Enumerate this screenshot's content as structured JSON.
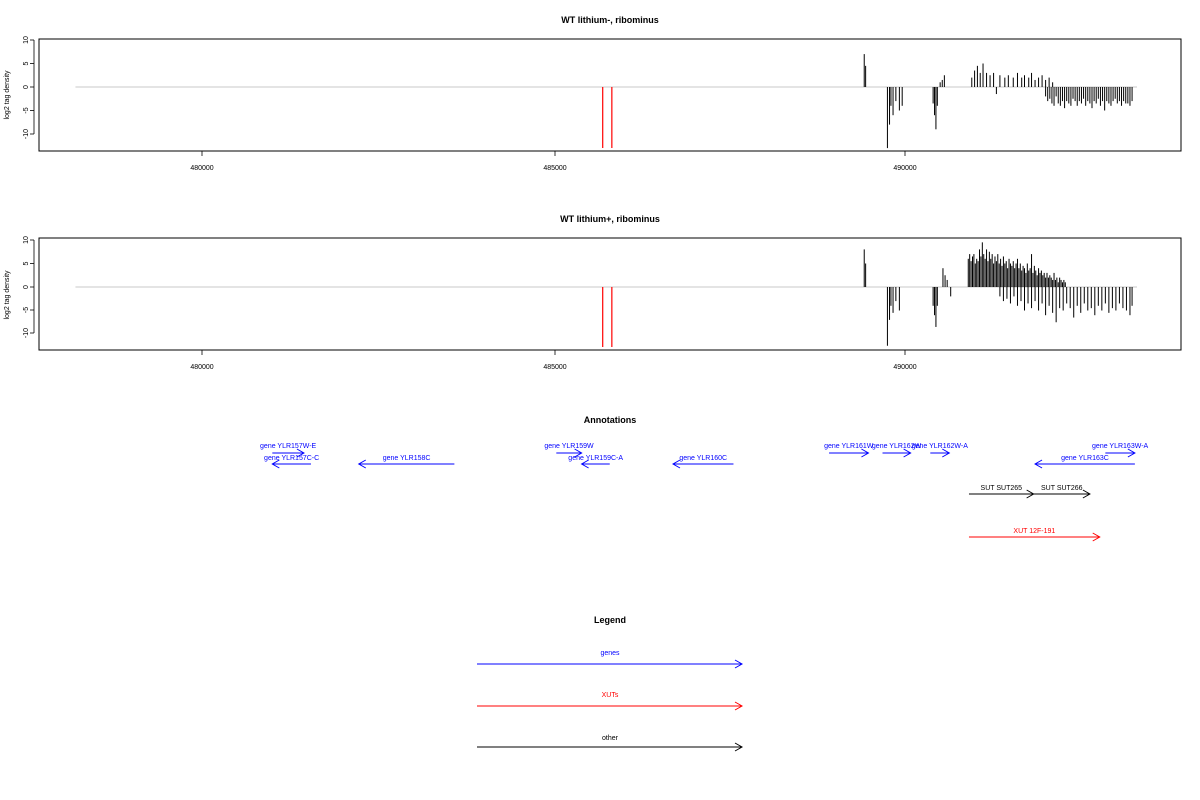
{
  "chart_data": [
    {
      "type": "bar",
      "title": "WT lithium-, ribominus",
      "xlabel": "",
      "ylabel": "log2 tag density",
      "xlim": [
        477700,
        493700
      ],
      "ylim": [
        -13.5,
        10.5
      ],
      "x_ticks": [
        "480000",
        "485000",
        "490000"
      ],
      "y_ticks": [
        "10",
        "5",
        "0",
        "-5",
        "-10"
      ],
      "baseline": {
        "from": 478200,
        "to": 493300,
        "color": "#c8c8c8"
      },
      "red_markers": [
        485700,
        485830
      ],
      "series": [
        {
          "values": [
            [
              489420,
              7
            ],
            [
              489440,
              4.5
            ],
            [
              489750,
              -13
            ],
            [
              489780,
              -8
            ],
            [
              489800,
              -4
            ],
            [
              489830,
              -6
            ],
            [
              489870,
              -3
            ],
            [
              489920,
              -5
            ],
            [
              489960,
              -4
            ],
            [
              490400,
              -3.5
            ],
            [
              490420,
              -6
            ],
            [
              490440,
              -9
            ],
            [
              490460,
              -4
            ],
            [
              490500,
              1
            ],
            [
              490530,
              1.5
            ],
            [
              490560,
              2.5
            ],
            [
              490950,
              2
            ],
            [
              490990,
              3.5
            ],
            [
              491030,
              4.5
            ],
            [
              491070,
              3
            ],
            [
              491110,
              5
            ],
            [
              491160,
              3
            ],
            [
              491210,
              2.5
            ],
            [
              491260,
              3
            ],
            [
              491300,
              -1.5
            ],
            [
              491350,
              2.5
            ],
            [
              491420,
              2
            ],
            [
              491470,
              2.5
            ],
            [
              491540,
              2
            ],
            [
              491600,
              3
            ],
            [
              491660,
              2
            ],
            [
              491700,
              2.5
            ],
            [
              491760,
              2
            ],
            [
              491800,
              3
            ],
            [
              491850,
              1.5
            ],
            [
              491900,
              2
            ],
            [
              491950,
              2.5
            ],
            [
              492000,
              1.5
            ],
            [
              492050,
              2
            ],
            [
              492100,
              1
            ],
            [
              492000,
              -2
            ],
            [
              492030,
              -3
            ],
            [
              492060,
              -2.5
            ],
            [
              492090,
              -3.5
            ],
            [
              492120,
              -4
            ],
            [
              492150,
              -2
            ],
            [
              492180,
              -3.5
            ],
            [
              492210,
              -4
            ],
            [
              492240,
              -3
            ],
            [
              492270,
              -4.5
            ],
            [
              492300,
              -3
            ],
            [
              492330,
              -3.5
            ],
            [
              492360,
              -4
            ],
            [
              492390,
              -2.5
            ],
            [
              492420,
              -3
            ],
            [
              492450,
              -4
            ],
            [
              492480,
              -3
            ],
            [
              492510,
              -3.5
            ],
            [
              492540,
              -2.5
            ],
            [
              492570,
              -4
            ],
            [
              492600,
              -3
            ],
            [
              492630,
              -3.5
            ],
            [
              492660,
              -4.5
            ],
            [
              492690,
              -3
            ],
            [
              492720,
              -3.5
            ],
            [
              492750,
              -2.5
            ],
            [
              492780,
              -4
            ],
            [
              492810,
              -3
            ],
            [
              492840,
              -5
            ],
            [
              492870,
              -3
            ],
            [
              492900,
              -3.5
            ],
            [
              492930,
              -4
            ],
            [
              492960,
              -3
            ],
            [
              492990,
              -2.5
            ],
            [
              493020,
              -3.5
            ],
            [
              493050,
              -3
            ],
            [
              493080,
              -4
            ],
            [
              493110,
              -3
            ],
            [
              493140,
              -3.5
            ],
            [
              493170,
              -3.5
            ],
            [
              493200,
              -4
            ],
            [
              493230,
              -3
            ]
          ]
        }
      ]
    },
    {
      "type": "bar",
      "title": "WT lithium+, ribominus",
      "xlabel": "",
      "ylabel": "log2 tag density",
      "xlim": [
        477700,
        493700
      ],
      "ylim": [
        -13.5,
        10.5
      ],
      "x_ticks": [
        "480000",
        "485000",
        "490000"
      ],
      "y_ticks": [
        "10",
        "5",
        "0",
        "-5",
        "-10"
      ],
      "baseline": {
        "from": 478200,
        "to": 493300,
        "color": "#c8c8c8"
      },
      "red_markers": [
        485700,
        485830
      ],
      "series": [
        {
          "values": [
            [
              489420,
              8
            ],
            [
              489440,
              5
            ],
            [
              489750,
              -12.5
            ],
            [
              489780,
              -7
            ],
            [
              489800,
              -4
            ],
            [
              489830,
              -5.5
            ],
            [
              489870,
              -3
            ],
            [
              489920,
              -5
            ],
            [
              490400,
              -4
            ],
            [
              490420,
              -6
            ],
            [
              490440,
              -8.5
            ],
            [
              490460,
              -4
            ],
            [
              490540,
              4
            ],
            [
              490570,
              2.5
            ],
            [
              490600,
              1.5
            ],
            [
              490650,
              -2
            ],
            [
              490900,
              6
            ],
            [
              490920,
              7
            ],
            [
              490940,
              5.5
            ],
            [
              490960,
              6.5
            ],
            [
              490980,
              7
            ],
            [
              491000,
              5
            ],
            [
              491020,
              6
            ],
            [
              491040,
              5.5
            ],
            [
              491060,
              8
            ],
            [
              491080,
              6.5
            ],
            [
              491100,
              9.5
            ],
            [
              491120,
              7
            ],
            [
              491140,
              6
            ],
            [
              491160,
              8
            ],
            [
              491180,
              5.5
            ],
            [
              491200,
              7.5
            ],
            [
              491220,
              6
            ],
            [
              491240,
              7
            ],
            [
              491260,
              5
            ],
            [
              491280,
              6.5
            ],
            [
              491300,
              5.5
            ],
            [
              491320,
              7
            ],
            [
              491340,
              5
            ],
            [
              491360,
              6
            ],
            [
              491380,
              4.5
            ],
            [
              491400,
              6.5
            ],
            [
              491420,
              5
            ],
            [
              491440,
              5.5
            ],
            [
              491460,
              4
            ],
            [
              491480,
              6
            ],
            [
              491500,
              5
            ],
            [
              491520,
              4.5
            ],
            [
              491540,
              5.5
            ],
            [
              491560,
              4
            ],
            [
              491580,
              5
            ],
            [
              491600,
              6
            ],
            [
              491620,
              4
            ],
            [
              491640,
              5
            ],
            [
              491660,
              3.5
            ],
            [
              491680,
              4.5
            ],
            [
              491700,
              4
            ],
            [
              491720,
              3
            ],
            [
              491740,
              5
            ],
            [
              491760,
              3.5
            ],
            [
              491780,
              4
            ],
            [
              491800,
              7
            ],
            [
              491820,
              3
            ],
            [
              491840,
              4.5
            ],
            [
              491860,
              3.5
            ],
            [
              491880,
              2.5
            ],
            [
              491900,
              4
            ],
            [
              491920,
              3
            ],
            [
              491940,
              3.5
            ],
            [
              491960,
              2.5
            ],
            [
              491980,
              3
            ],
            [
              492000,
              2
            ],
            [
              492020,
              3
            ],
            [
              492040,
              2
            ],
            [
              492060,
              2.5
            ],
            [
              492080,
              2
            ],
            [
              492100,
              1.5
            ],
            [
              492120,
              3
            ],
            [
              492140,
              1.5
            ],
            [
              492160,
              2
            ],
            [
              492180,
              1
            ],
            [
              492200,
              2
            ],
            [
              492220,
              1.5
            ],
            [
              492240,
              1
            ],
            [
              492260,
              1.5
            ],
            [
              492280,
              1
            ],
            [
              491350,
              -2
            ],
            [
              491400,
              -3
            ],
            [
              491450,
              -2.5
            ],
            [
              491500,
              -3.5
            ],
            [
              491550,
              -2
            ],
            [
              491600,
              -4
            ],
            [
              491650,
              -3
            ],
            [
              491700,
              -5
            ],
            [
              491750,
              -3.5
            ],
            [
              491800,
              -4.5
            ],
            [
              491850,
              -3
            ],
            [
              491900,
              -5
            ],
            [
              491950,
              -3.5
            ],
            [
              492000,
              -6
            ],
            [
              492050,
              -4
            ],
            [
              492100,
              -5.5
            ],
            [
              492150,
              -7.5
            ],
            [
              492200,
              -4.5
            ],
            [
              492250,
              -5
            ],
            [
              492300,
              -3.5
            ],
            [
              492350,
              -4.5
            ],
            [
              492400,
              -6.5
            ],
            [
              492450,
              -4
            ],
            [
              492500,
              -5.5
            ],
            [
              492550,
              -3.5
            ],
            [
              492600,
              -5
            ],
            [
              492650,
              -4.5
            ],
            [
              492700,
              -6
            ],
            [
              492750,
              -4
            ],
            [
              492800,
              -5
            ],
            [
              492850,
              -3.5
            ],
            [
              492900,
              -5.5
            ],
            [
              492950,
              -4.5
            ],
            [
              493000,
              -5
            ],
            [
              493050,
              -3.5
            ],
            [
              493100,
              -4.5
            ],
            [
              493150,
              -5
            ],
            [
              493200,
              -6
            ],
            [
              493230,
              -4
            ]
          ]
        }
      ]
    }
  ],
  "annotations": {
    "title": "Annotations",
    "xlim": [
      477700,
      493700
    ],
    "features": [
      {
        "label": "gene YLR157W-E",
        "type": "gene",
        "start": 481000,
        "end": 481450,
        "strand": "+",
        "row": 0
      },
      {
        "label": "gene YLR157C-C",
        "type": "gene",
        "start": 481000,
        "end": 481550,
        "strand": "-",
        "row": 1
      },
      {
        "label": "gene YLR158C",
        "type": "gene",
        "start": 482230,
        "end": 483590,
        "strand": "-",
        "row": 1
      },
      {
        "label": "gene YLR159W",
        "type": "gene",
        "start": 485040,
        "end": 485400,
        "strand": "+",
        "row": 0
      },
      {
        "label": "gene YLR159C-A",
        "type": "gene",
        "start": 485400,
        "end": 485800,
        "strand": "-",
        "row": 1
      },
      {
        "label": "gene YLR160C",
        "type": "gene",
        "start": 486700,
        "end": 487560,
        "strand": "-",
        "row": 1
      },
      {
        "label": "gene YLR161W",
        "type": "gene",
        "start": 488920,
        "end": 489480,
        "strand": "+",
        "row": 0
      },
      {
        "label": "gene YLR162W",
        "type": "gene",
        "start": 489680,
        "end": 490080,
        "strand": "+",
        "row": 0
      },
      {
        "label": "gene YLR162W-A",
        "type": "gene",
        "start": 490360,
        "end": 490630,
        "strand": "+",
        "row": 0
      },
      {
        "label": "gene YLR163W-A",
        "type": "gene",
        "start": 492850,
        "end": 493270,
        "strand": "+",
        "row": 0
      },
      {
        "label": "gene YLR163C",
        "type": "gene",
        "start": 491850,
        "end": 493270,
        "strand": "-",
        "row": 1
      },
      {
        "label": "SUT SUT265",
        "type": "other",
        "start": 490910,
        "end": 491830,
        "strand": "+",
        "row": 2
      },
      {
        "label": "SUT SUT266",
        "type": "other",
        "start": 491830,
        "end": 492630,
        "strand": "+",
        "row": 2
      },
      {
        "label": "XUT 12F-191",
        "type": "xut",
        "start": 490910,
        "end": 492770,
        "strand": "+",
        "row": 3
      }
    ]
  },
  "legend": {
    "title": "Legend",
    "items": [
      {
        "label": "genes",
        "color": "#0000ff"
      },
      {
        "label": "XUTs",
        "color": "#ff0000"
      },
      {
        "label": "other",
        "color": "#000000"
      }
    ]
  },
  "colors": {
    "gene": "#0000ff",
    "xut": "#ff0000",
    "other": "#000000",
    "marker": "#ff0000",
    "baseline": "#c8c8c8"
  }
}
